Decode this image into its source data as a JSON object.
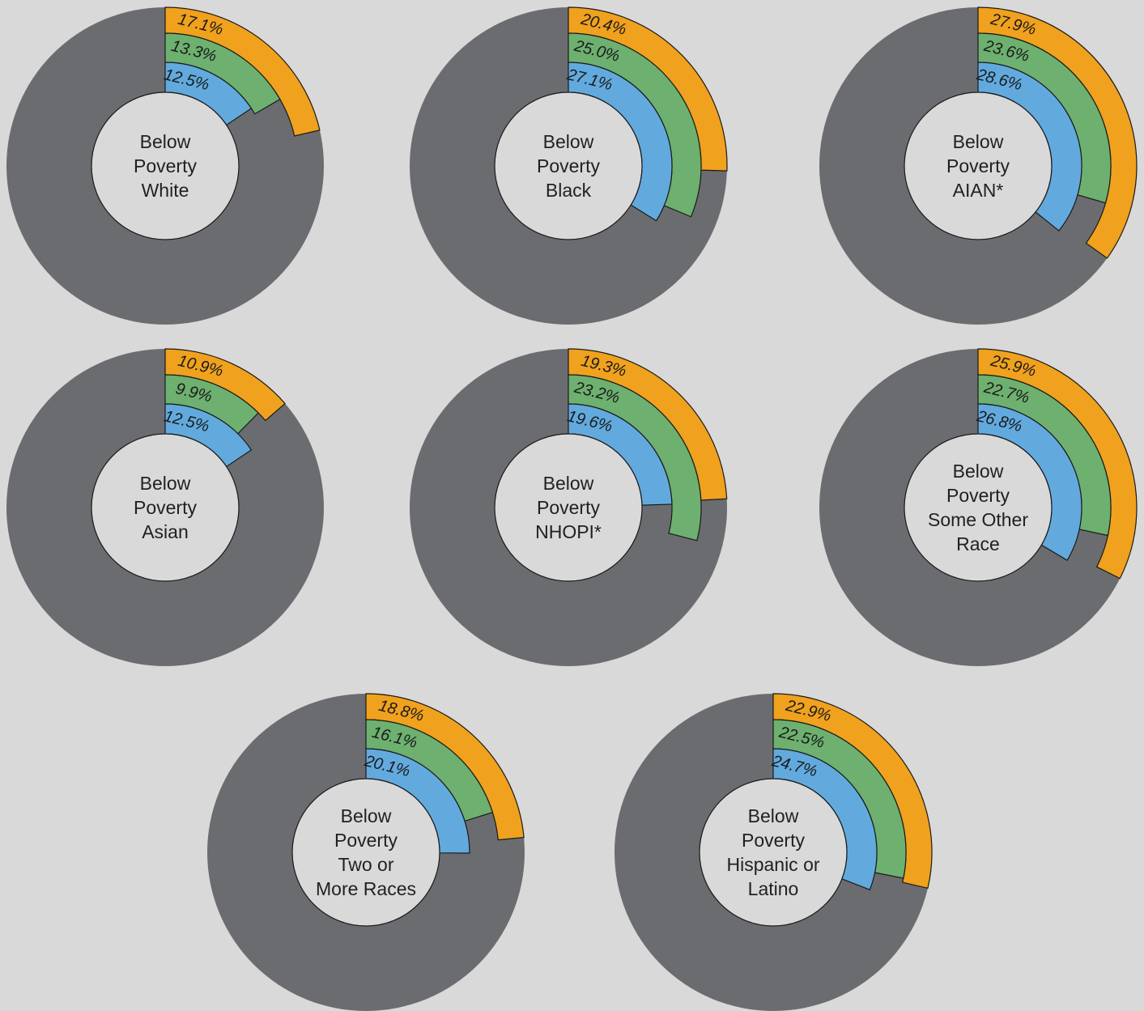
{
  "colors": {
    "background": "#d9d9d9",
    "remainder": "#6b6c70",
    "hole": "#d9d9d9",
    "ring_outer": "#f0a11e",
    "ring_middle": "#6db06f",
    "ring_inner": "#62aade",
    "outline": "#1a1a1a"
  },
  "chart_data": [
    {
      "type": "radial-bar",
      "center_lines": [
        "Below",
        "Poverty",
        "White"
      ],
      "rings": [
        {
          "value": 17.1,
          "label": "17.1%"
        },
        {
          "value": 13.3,
          "label": "13.3%"
        },
        {
          "value": 12.5,
          "label": "12.5%"
        }
      ]
    },
    {
      "type": "radial-bar",
      "center_lines": [
        "Below",
        "Poverty",
        "Black"
      ],
      "rings": [
        {
          "value": 20.4,
          "label": "20.4%"
        },
        {
          "value": 25.0,
          "label": "25.0%"
        },
        {
          "value": 27.1,
          "label": "27.1%"
        }
      ]
    },
    {
      "type": "radial-bar",
      "center_lines": [
        "Below",
        "Poverty",
        "AIAN*"
      ],
      "rings": [
        {
          "value": 27.9,
          "label": "27.9%"
        },
        {
          "value": 23.6,
          "label": "23.6%"
        },
        {
          "value": 28.6,
          "label": "28.6%"
        }
      ]
    },
    {
      "type": "radial-bar",
      "center_lines": [
        "Below",
        "Poverty",
        "Asian"
      ],
      "rings": [
        {
          "value": 10.9,
          "label": "10.9%"
        },
        {
          "value": 9.9,
          "label": "9.9%"
        },
        {
          "value": 12.5,
          "label": "12.5%"
        }
      ]
    },
    {
      "type": "radial-bar",
      "center_lines": [
        "Below",
        "Poverty",
        "NHOPI*"
      ],
      "rings": [
        {
          "value": 19.3,
          "label": "19.3%"
        },
        {
          "value": 23.2,
          "label": "23.2%"
        },
        {
          "value": 19.6,
          "label": "19.6%"
        }
      ]
    },
    {
      "type": "radial-bar",
      "center_lines": [
        "Below",
        "Poverty",
        "Some Other",
        "Race"
      ],
      "rings": [
        {
          "value": 25.9,
          "label": "25.9%"
        },
        {
          "value": 22.7,
          "label": "22.7%"
        },
        {
          "value": 26.8,
          "label": "26.8%"
        }
      ]
    },
    {
      "type": "radial-bar",
      "center_lines": [
        "Below",
        "Poverty",
        "Two or",
        "More Races"
      ],
      "rings": [
        {
          "value": 18.8,
          "label": "18.8%"
        },
        {
          "value": 16.1,
          "label": "16.1%"
        },
        {
          "value": 20.1,
          "label": "20.1%"
        }
      ]
    },
    {
      "type": "radial-bar",
      "center_lines": [
        "Below",
        "Poverty",
        "Hispanic or",
        "Latino"
      ],
      "rings": [
        {
          "value": 22.9,
          "label": "22.9%"
        },
        {
          "value": 22.5,
          "label": "22.5%"
        },
        {
          "value": 24.7,
          "label": "24.7%"
        }
      ]
    }
  ]
}
